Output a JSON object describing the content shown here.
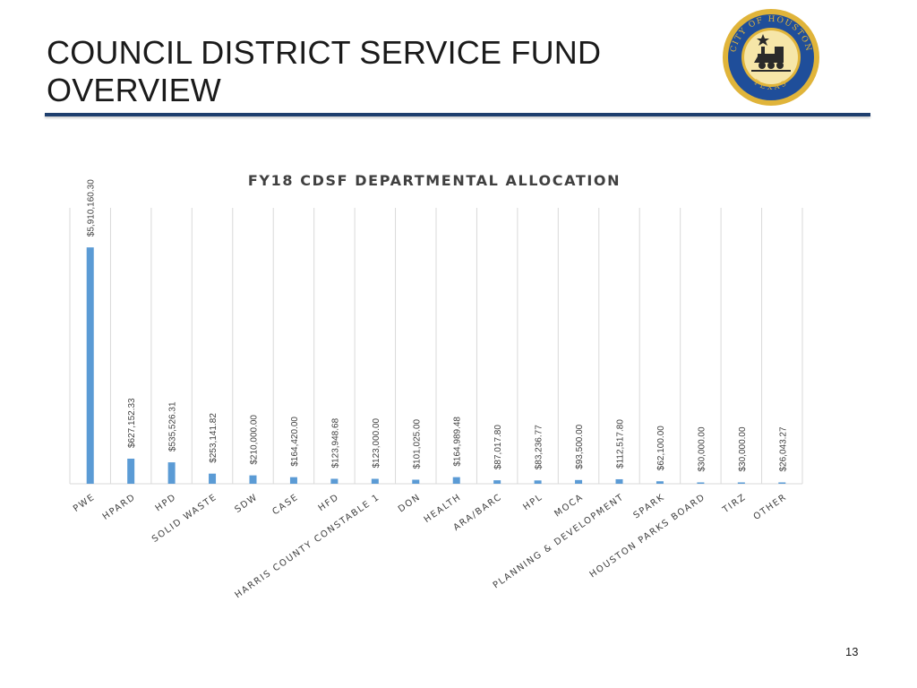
{
  "slide": {
    "title": "COUNCIL DISTRICT SERVICE FUND OVERVIEW",
    "page_number": "13",
    "seal": {
      "top_text": "CITY OF HOUSTON",
      "bottom_text": "TEXAS",
      "colors": {
        "blue": "#1f4e9a",
        "gold": "#e0b43a",
        "dark": "#2a2a2a"
      }
    }
  },
  "colors": {
    "bar": "#5b9bd5",
    "grid": "#d9d9d9",
    "rule": "#1f3f6e",
    "text": "#404040"
  },
  "chart_data": {
    "type": "bar",
    "title": "FY18 CDSF DEPARTMENTAL ALLOCATION",
    "xlabel": "",
    "ylabel": "",
    "grid": true,
    "legend": "none",
    "ylim": [
      0,
      6900000
    ],
    "categories": [
      "PWE",
      "HPARD",
      "HPD",
      "SOLID WASTE",
      "SDW",
      "CASE",
      "HFD",
      "HARRIS COUNTY CONSTABLE 1",
      "DON",
      "HEALTH",
      "ARA/BARC",
      "HPL",
      "MOCA",
      "PLANNING & DEVELOPMENT",
      "SPARK",
      "HOUSTON PARKS BOARD",
      "TIRZ",
      "OTHER"
    ],
    "values": [
      5910160.3,
      627152.33,
      535526.31,
      253141.82,
      210000.0,
      164420.0,
      123948.68,
      123000.0,
      101025.0,
      164989.48,
      87017.8,
      83236.77,
      93500.0,
      112517.8,
      62100.0,
      30000.0,
      30000.0,
      26043.27
    ],
    "labels": [
      "$5,910,160.30",
      "$627,152.33",
      "$535,526.31",
      "$253,141.82",
      "$210,000.00",
      "$164,420.00",
      "$123,948.68",
      "$123,000.00",
      "$101,025.00",
      "$164,989.48",
      "$87,017.80",
      "$83,236.77",
      "$93,500.00",
      "$112,517.80",
      "$62,100.00",
      "$30,000.00",
      "$30,000.00",
      "$26,043.27"
    ]
  }
}
